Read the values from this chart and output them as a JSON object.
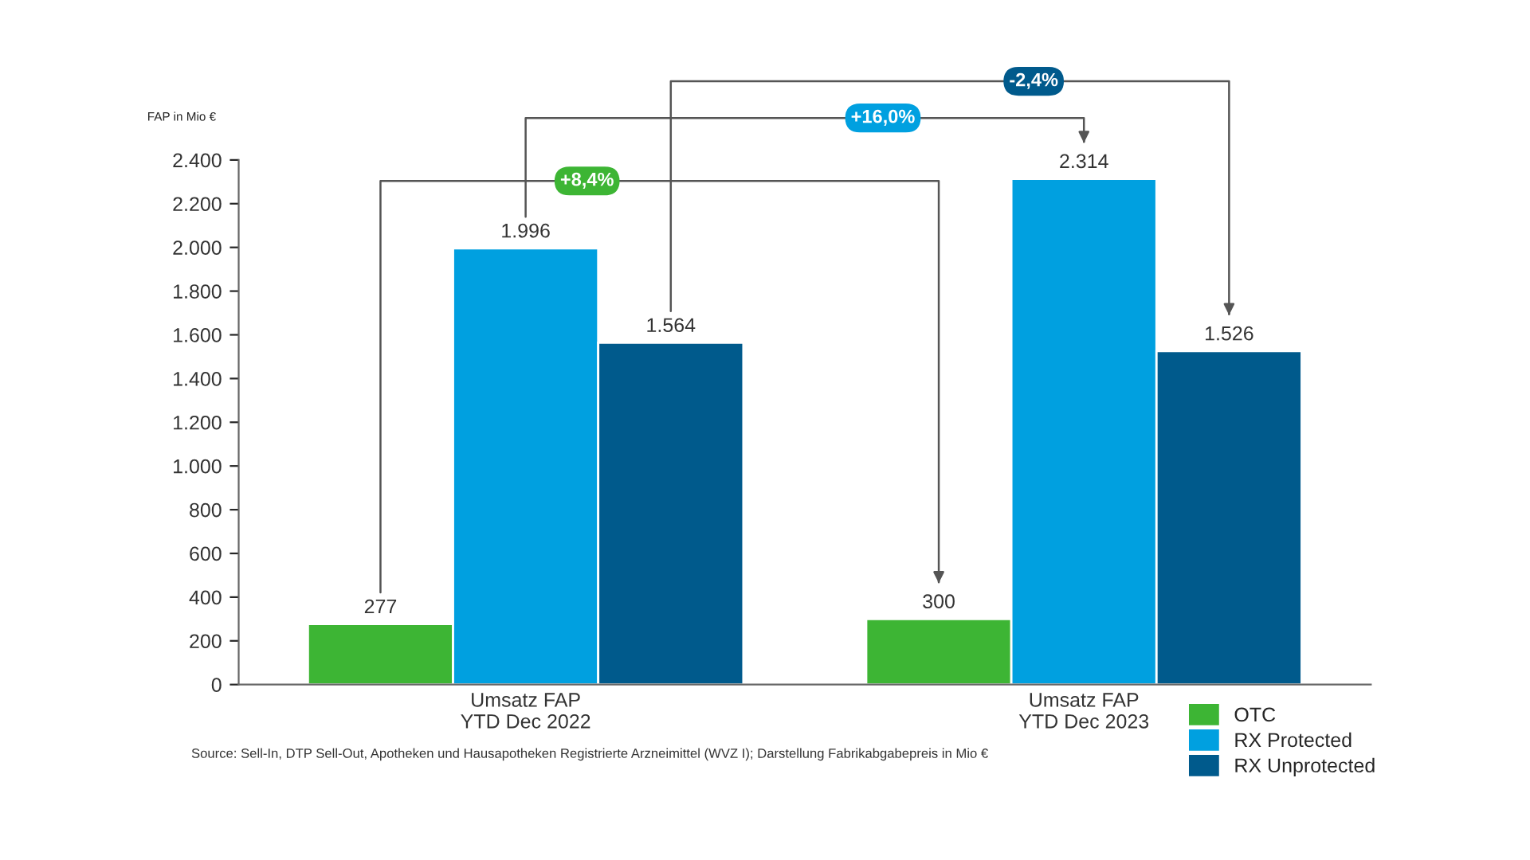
{
  "chart_data": {
    "type": "bar",
    "ylabel": "FAP in Mio €",
    "categories": [
      "Umsatz FAP\nYTD Dec 2022",
      "Umsatz FAP\nYTD Dec 2023"
    ],
    "series": [
      {
        "name": "OTC",
        "color": "#3db534",
        "values": [
          277,
          300
        ],
        "value_labels": [
          "277",
          "300"
        ]
      },
      {
        "name": "RX Protected",
        "color": "#00a0e0",
        "values": [
          1996,
          2314
        ],
        "value_labels": [
          "1.996",
          "2.314"
        ]
      },
      {
        "name": "RX Unprotected",
        "color": "#005a8c",
        "values": [
          1564,
          1526
        ],
        "value_labels": [
          "1.564",
          "1.526"
        ]
      }
    ],
    "ylim": [
      0,
      2400
    ],
    "yticks": [
      0,
      200,
      400,
      600,
      800,
      {
        "value": 1000,
        "label": "1.000"
      },
      {
        "value": 1200,
        "label": "1.200"
      },
      {
        "value": 1400,
        "label": "1.400"
      },
      {
        "value": 1600,
        "label": "1.600"
      },
      {
        "value": 1800,
        "label": "1.800"
      },
      {
        "value": 2000,
        "label": "2.000"
      },
      {
        "value": 2200,
        "label": "2.200"
      },
      {
        "value": 2400,
        "label": "2.400"
      }
    ],
    "annotations": [
      "+8,4%",
      "+16,0%",
      "-2,4%",
      "Source: Sell-In, DTP Sell-Out, Apotheken und Hausapotheken Registrierte Arzneimittel (WVZ I); Darstellung Fabrikabgabepreis in Mio €"
    ],
    "grid": false,
    "legend": "bottom right"
  }
}
